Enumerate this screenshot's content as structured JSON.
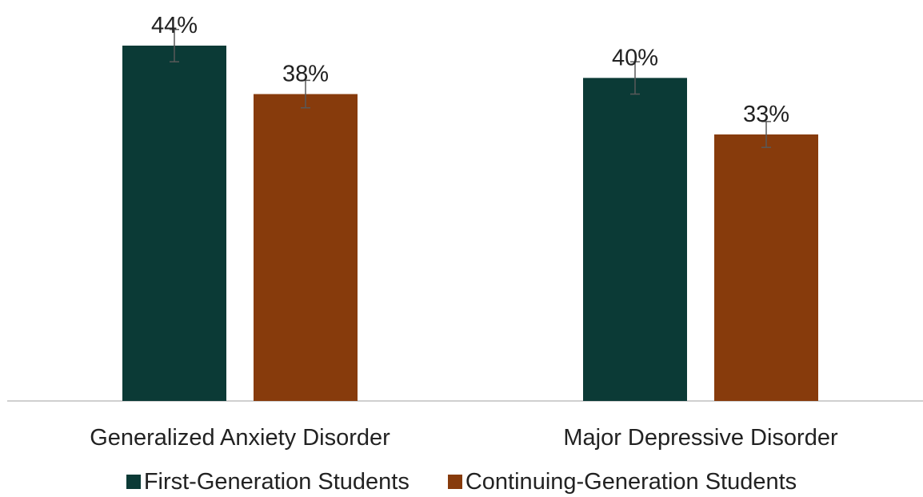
{
  "chart_data": {
    "type": "bar",
    "categories": [
      "Generalized Anxiety Disorder",
      "Major Depressive Disorder"
    ],
    "series": [
      {
        "name": "First-Generation Students",
        "values": [
          44,
          40
        ],
        "labels": [
          "44%",
          "40%"
        ],
        "error": [
          2,
          2
        ],
        "color": "#0b3a36"
      },
      {
        "name": "Continuing-Generation Students",
        "values": [
          38,
          33
        ],
        "labels": [
          "38%",
          "33%"
        ],
        "error": [
          1.7,
          1.6
        ],
        "color": "#873b0c"
      }
    ],
    "ylim": [
      0,
      44
    ],
    "grid": false,
    "legend_position": "bottom",
    "axis_color": "#bfbfbf",
    "error_bar_color": "#595959",
    "text_color": "#222222"
  }
}
